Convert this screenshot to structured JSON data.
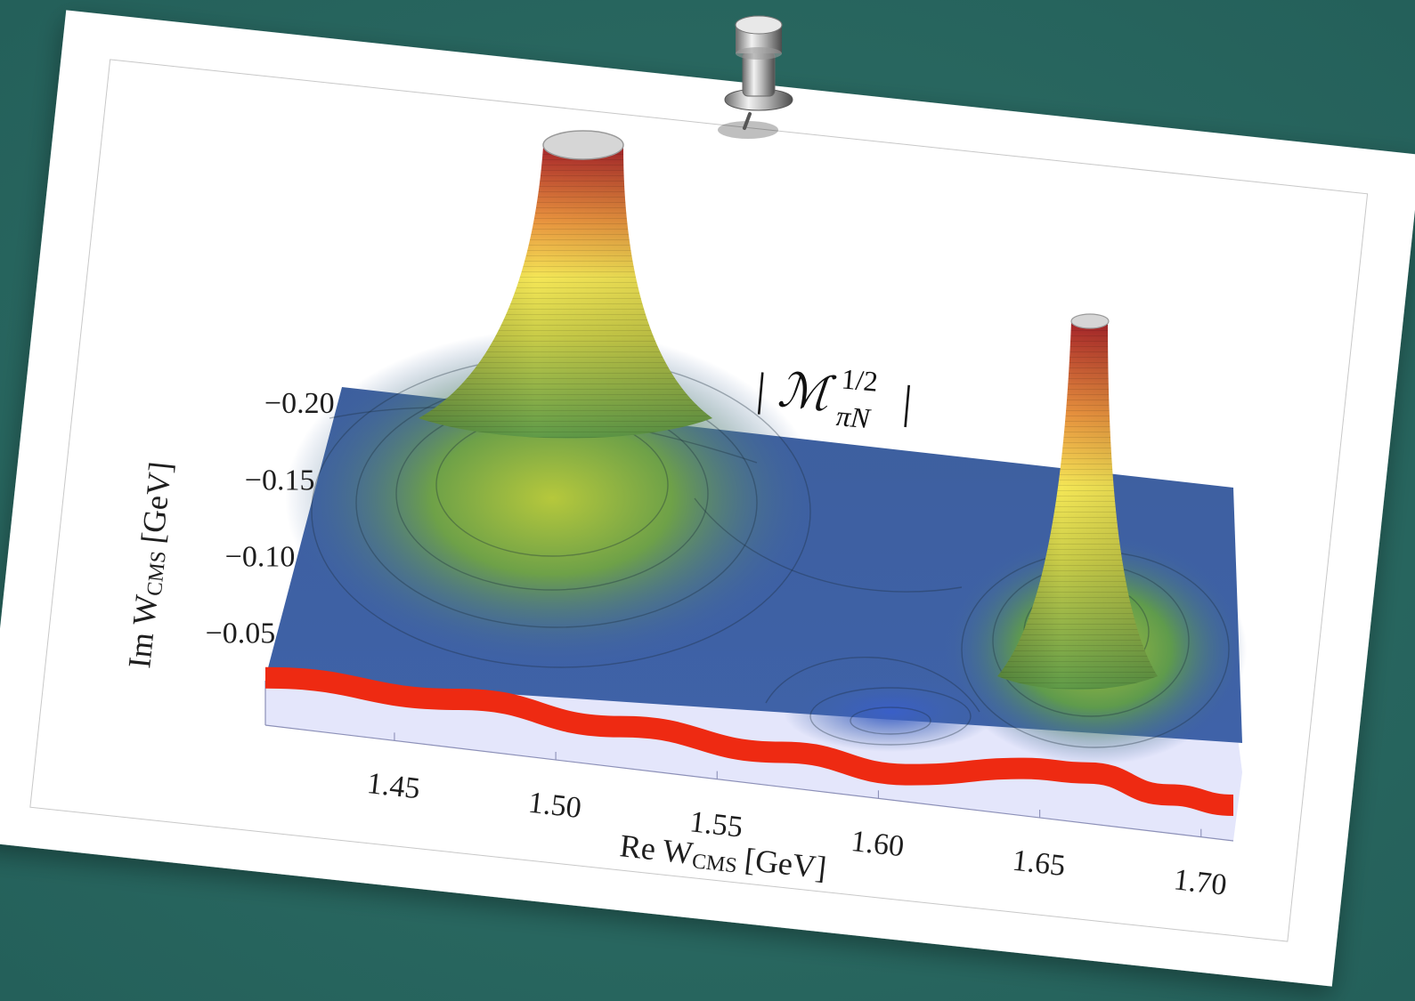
{
  "colors": {
    "board": "#2b6a62",
    "paper": "#ffffff",
    "surface_low": "#3f63a6",
    "surface_mid": "#6aa447",
    "surface_high": "#f0e050",
    "surface_top": "#a8252a",
    "real_axis_band": "#ee2a12",
    "base_plane": "#e4e6fb"
  },
  "icons": {
    "pin": "pushpin-icon"
  },
  "chart_data": {
    "type": "surface3d",
    "title": "| ℳ πN 1/2 |",
    "title_parts": {
      "symbol": "ℳ",
      "subscript": "πN",
      "superscript": "1/2"
    },
    "xlabel": "Re W",
    "xlabel_sub": "CMS",
    "xlabel_unit": "[GeV]",
    "ylabel": "Im W",
    "ylabel_sub": "CMS",
    "ylabel_unit": "[GeV]",
    "x_ticks": [
      "1.45",
      "1.50",
      "1.55",
      "1.60",
      "1.65",
      "1.70"
    ],
    "y_ticks": [
      "-0.05",
      "-0.10",
      "-0.15",
      "-0.20"
    ],
    "x_range": [
      1.41,
      1.71
    ],
    "y_range": [
      -0.21,
      -0.02
    ],
    "poles": [
      {
        "re": 1.51,
        "im": -0.19
      },
      {
        "re": 1.665,
        "im": -0.09
      }
    ],
    "real_axis_cut": [
      {
        "re": 1.41,
        "value": 0.72
      },
      {
        "re": 1.47,
        "value": 0.75
      },
      {
        "re": 1.52,
        "value": 0.6
      },
      {
        "re": 1.57,
        "value": 0.48
      },
      {
        "re": 1.61,
        "value": 0.35
      },
      {
        "re": 1.645,
        "value": 0.72
      },
      {
        "re": 1.665,
        "value": 0.78
      },
      {
        "re": 1.69,
        "value": 0.55
      },
      {
        "re": 1.71,
        "value": 0.5
      }
    ]
  }
}
